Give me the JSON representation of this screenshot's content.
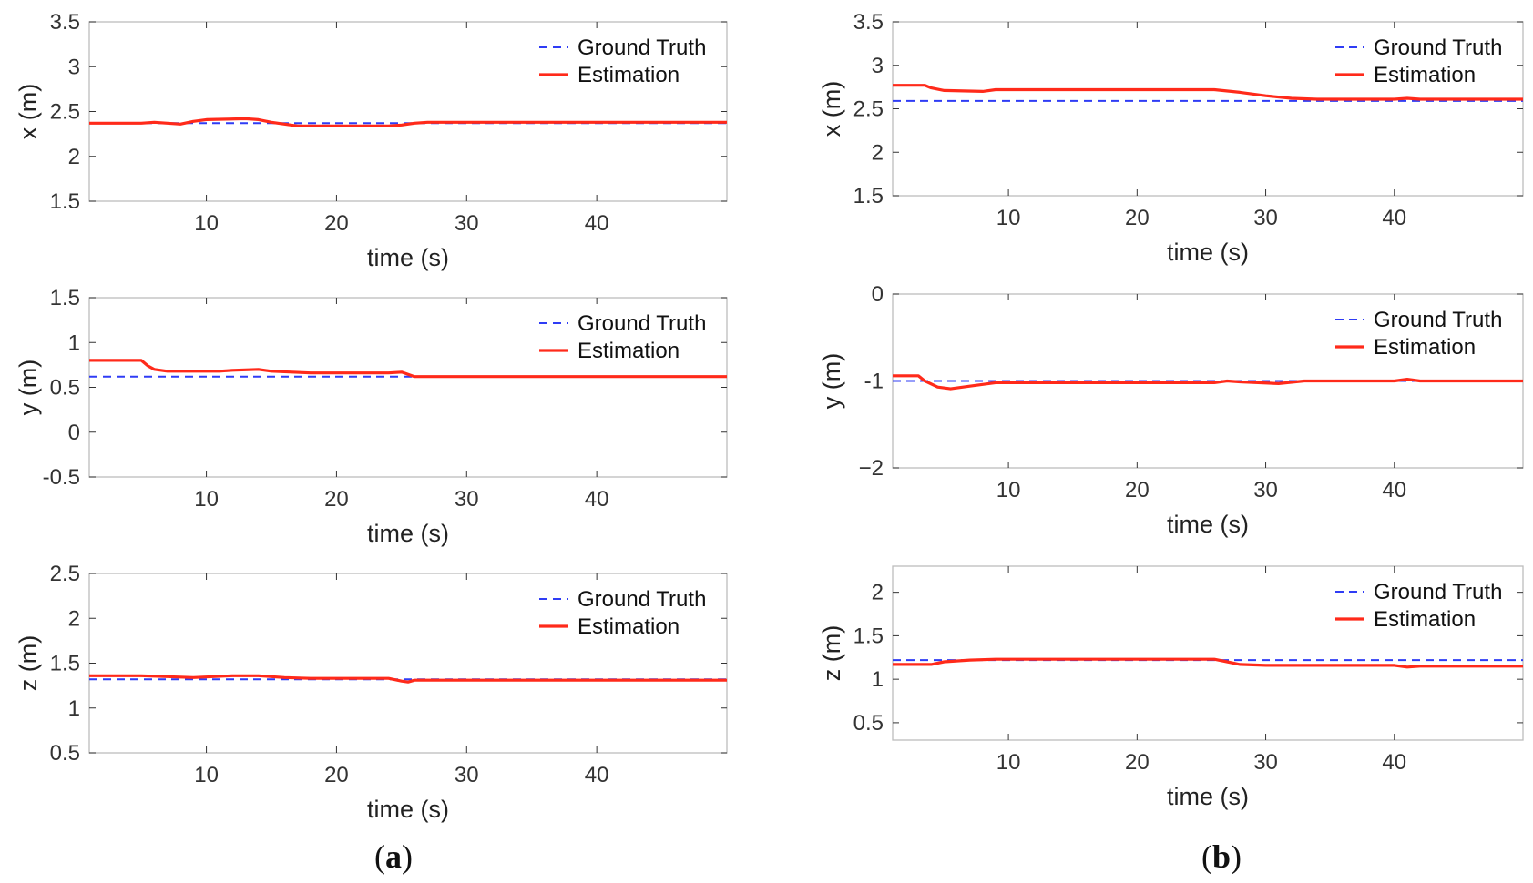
{
  "panels": [
    {
      "open": "(",
      "letter": "a",
      "close": ")"
    },
    {
      "open": "(",
      "letter": "b",
      "close": ")"
    }
  ],
  "colors": {
    "ground_truth": "#2f3cf5",
    "estimation": "#ff2a1a",
    "axis": "#bdbdbd"
  },
  "chart_data": [
    {
      "type": "line",
      "panel": "a",
      "xlabel": "time (s)",
      "ylabel": "x (m)",
      "xlim": [
        1,
        50
      ],
      "ylim": [
        1.5,
        3.5
      ],
      "xticks": [
        10,
        20,
        30,
        40
      ],
      "yticks": [
        1.5,
        2,
        2.5,
        3,
        3.5
      ],
      "legend": "top-right",
      "grid": false,
      "series": [
        {
          "name": "Ground Truth",
          "style": "dashed",
          "x": [
            1,
            50
          ],
          "y": [
            2.37,
            2.37
          ]
        },
        {
          "name": "Estimation",
          "style": "solid",
          "x": [
            1,
            5,
            6,
            8,
            9,
            10,
            13,
            14,
            15,
            16,
            17,
            24,
            25,
            26,
            27,
            50
          ],
          "y": [
            2.37,
            2.37,
            2.38,
            2.36,
            2.39,
            2.41,
            2.42,
            2.41,
            2.38,
            2.36,
            2.34,
            2.34,
            2.35,
            2.37,
            2.38,
            2.38
          ]
        }
      ]
    },
    {
      "type": "line",
      "panel": "a",
      "xlabel": "time (s)",
      "ylabel": "y (m)",
      "xlim": [
        1,
        50
      ],
      "ylim": [
        -0.5,
        1.5
      ],
      "xticks": [
        10,
        20,
        30,
        40
      ],
      "yticks": [
        -0.5,
        0,
        0.5,
        1,
        1.5
      ],
      "legend": "top-right",
      "grid": false,
      "series": [
        {
          "name": "Ground Truth",
          "style": "dashed",
          "x": [
            1,
            50
          ],
          "y": [
            0.62,
            0.62
          ]
        },
        {
          "name": "Estimation",
          "style": "solid",
          "x": [
            1,
            5,
            5.5,
            6,
            7,
            11,
            12,
            14,
            15,
            18,
            24,
            25,
            26,
            50
          ],
          "y": [
            0.8,
            0.8,
            0.74,
            0.7,
            0.68,
            0.68,
            0.69,
            0.7,
            0.68,
            0.66,
            0.66,
            0.67,
            0.62,
            0.62
          ]
        }
      ]
    },
    {
      "type": "line",
      "panel": "a",
      "xlabel": "time (s)",
      "ylabel": "z (m)",
      "xlim": [
        1,
        50
      ],
      "ylim": [
        0.5,
        2.5
      ],
      "xticks": [
        10,
        20,
        30,
        40
      ],
      "yticks": [
        0.5,
        1,
        1.5,
        2,
        2.5
      ],
      "legend": "top-right",
      "grid": false,
      "series": [
        {
          "name": "Ground Truth",
          "style": "dashed",
          "x": [
            1,
            50
          ],
          "y": [
            1.32,
            1.32
          ]
        },
        {
          "name": "Estimation",
          "style": "solid",
          "x": [
            1,
            5,
            7,
            9,
            12,
            14,
            16,
            18,
            24,
            25,
            25.5,
            26,
            27,
            50
          ],
          "y": [
            1.36,
            1.36,
            1.35,
            1.34,
            1.36,
            1.36,
            1.34,
            1.33,
            1.33,
            1.3,
            1.29,
            1.31,
            1.31,
            1.31
          ]
        }
      ]
    },
    {
      "type": "line",
      "panel": "b",
      "xlabel": "time (s)",
      "ylabel": "x (m)",
      "xlim": [
        1,
        50
      ],
      "ylim": [
        1.5,
        3.5
      ],
      "xticks": [
        10,
        20,
        30,
        40
      ],
      "yticks": [
        1.5,
        2,
        2.5,
        3,
        3.5
      ],
      "legend": "top-right",
      "grid": false,
      "series": [
        {
          "name": "Ground Truth",
          "style": "dashed",
          "x": [
            1,
            50
          ],
          "y": [
            2.59,
            2.59
          ]
        },
        {
          "name": "Estimation",
          "style": "solid",
          "x": [
            1,
            3.5,
            4,
            5,
            8,
            9,
            26,
            28,
            30,
            32,
            34,
            40,
            41,
            42,
            50
          ],
          "y": [
            2.77,
            2.77,
            2.74,
            2.71,
            2.7,
            2.72,
            2.72,
            2.69,
            2.65,
            2.62,
            2.61,
            2.61,
            2.62,
            2.61,
            2.61
          ]
        }
      ]
    },
    {
      "type": "line",
      "panel": "b",
      "xlabel": "time (s)",
      "ylabel": "y (m)",
      "xlim": [
        1,
        50
      ],
      "ylim": [
        -2,
        0
      ],
      "xticks": [
        10,
        20,
        30,
        40
      ],
      "yticks": [
        -2,
        -1,
        0
      ],
      "ytick_labels": [
        "−2",
        "-1",
        "0"
      ],
      "legend": "top-right",
      "grid": false,
      "series": [
        {
          "name": "Ground Truth",
          "style": "dashed",
          "x": [
            1,
            50
          ],
          "y": [
            -1.0,
            -1.0
          ]
        },
        {
          "name": "Estimation",
          "style": "solid",
          "x": [
            1,
            3,
            3.5,
            4.5,
            5.5,
            7,
            9,
            26,
            27,
            28,
            31,
            33,
            40,
            41,
            42,
            50
          ],
          "y": [
            -0.94,
            -0.94,
            -1.0,
            -1.07,
            -1.09,
            -1.06,
            -1.02,
            -1.02,
            -1.0,
            -1.01,
            -1.03,
            -1.0,
            -1.0,
            -0.98,
            -1.0,
            -1.0
          ]
        }
      ]
    },
    {
      "type": "line",
      "panel": "b",
      "xlabel": "time (s)",
      "ylabel": "z (m)",
      "xlim": [
        1,
        50
      ],
      "ylim": [
        0.3,
        2.3
      ],
      "xticks": [
        10,
        20,
        30,
        40
      ],
      "yticks": [
        0.5,
        1,
        1.5,
        2
      ],
      "legend": "top-right",
      "grid": false,
      "series": [
        {
          "name": "Ground Truth",
          "style": "dashed",
          "x": [
            1,
            50
          ],
          "y": [
            1.22,
            1.22
          ]
        },
        {
          "name": "Estimation",
          "style": "solid",
          "x": [
            1,
            4,
            5,
            7,
            9,
            26,
            27,
            28,
            30,
            40,
            41,
            42,
            50
          ],
          "y": [
            1.17,
            1.17,
            1.2,
            1.22,
            1.23,
            1.23,
            1.2,
            1.17,
            1.16,
            1.16,
            1.14,
            1.15,
            1.15
          ]
        }
      ]
    }
  ]
}
